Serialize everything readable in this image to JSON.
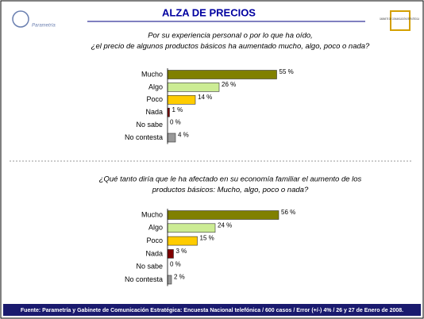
{
  "header": {
    "title": "ALZA DE PRECIOS",
    "logo_left": "Parametría",
    "logo_right": "GABINETE DE COMUNICACIÓN ESTRATÉGICA"
  },
  "chart_data": [
    {
      "type": "bar",
      "orientation": "horizontal",
      "title": [
        "Por su experiencia personal o por lo que ha oído,",
        "¿el precio de algunos productos básicos ha aumentado mucho, algo, poco o nada?"
      ],
      "categories": [
        "Mucho",
        "Algo",
        "Poco",
        "Nada",
        "No sabe",
        "No contesta"
      ],
      "values": [
        55,
        26,
        14,
        1,
        0,
        4
      ],
      "value_labels": [
        "55 %",
        "26 %",
        "14 %",
        "1 %",
        "0 %",
        "4 %"
      ],
      "colors": [
        "#808000",
        "#ccec94",
        "#ffcc00",
        "#800000",
        "#ffffff",
        "#999999"
      ]
    },
    {
      "type": "bar",
      "orientation": "horizontal",
      "title": [
        "¿Qué tanto diría que le ha afectado en su economía familiar el aumento de los",
        "productos básicos: Mucho, algo, poco o nada?"
      ],
      "categories": [
        "Mucho",
        "Algo",
        "Poco",
        "Nada",
        "No sabe",
        "No contesta"
      ],
      "values": [
        56,
        24,
        15,
        3,
        0,
        2
      ],
      "value_labels": [
        "56 %",
        "24 %",
        "15 %",
        "3 %",
        "0 %",
        "2 %"
      ],
      "colors": [
        "#808000",
        "#ccec94",
        "#ffcc00",
        "#800000",
        "#ffffff",
        "#999999"
      ]
    }
  ],
  "footer": {
    "source": "Fuente: Parametría y Gabinete de Comunicación Estratégica: Encuesta Nacional telefónica / 600 casos / Error (+/-) 4% / 26 y 27 de Enero de 2008."
  }
}
